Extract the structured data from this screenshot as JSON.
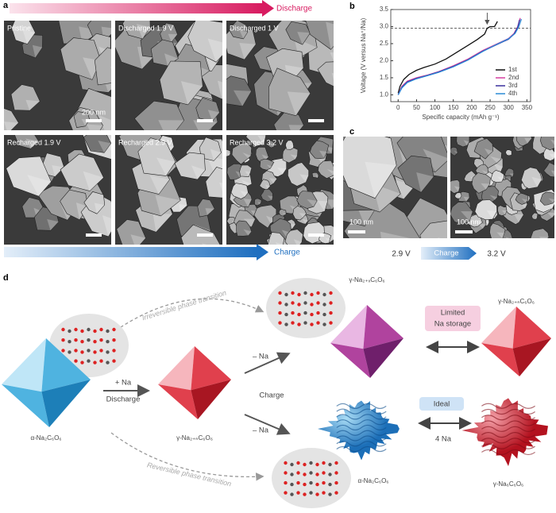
{
  "panel_a": {
    "label": "a",
    "top_arrow": "Discharge",
    "bottom_arrow": "Charge",
    "images": [
      {
        "caption": "Pristine",
        "scale_bar": "200 nm"
      },
      {
        "caption": "Discharged 1.9 V"
      },
      {
        "caption": "Discharged 1 V"
      },
      {
        "caption": "Recharged 1.9 V"
      },
      {
        "caption": "Recharged 2.9 V"
      },
      {
        "caption": "Recharged 3.2 V"
      }
    ]
  },
  "chart_data": {
    "type": "line",
    "panel_label": "b",
    "xlabel": "Specific capacity (mAh g⁻¹)",
    "ylabel": "Voltage (V versus Na⁺/Na)",
    "xlim": [
      -20,
      360
    ],
    "ylim": [
      0.8,
      3.5
    ],
    "xticks": [
      0,
      50,
      100,
      150,
      200,
      250,
      300,
      350
    ],
    "yticks": [
      {
        "value": 1,
        "label": "1.0"
      },
      1.5,
      {
        "value": 2,
        "label": "2.0"
      },
      2.5,
      {
        "value": 3,
        "label": "3.0"
      },
      3.5
    ],
    "reference_line": 2.95,
    "legend": "lower right",
    "series": [
      {
        "name": "1st",
        "color": "#111111",
        "x": [
          0,
          5,
          15,
          30,
          50,
          70,
          100,
          130,
          160,
          190,
          215,
          235,
          242,
          250,
          262,
          270
        ],
        "values": [
          1.05,
          1.25,
          1.45,
          1.6,
          1.72,
          1.8,
          1.9,
          2.05,
          2.25,
          2.45,
          2.62,
          2.78,
          2.95,
          3.0,
          3.0,
          3.15
        ]
      },
      {
        "name": "2nd",
        "color": "#d63fa0",
        "x": [
          0,
          10,
          25,
          50,
          80,
          110,
          150,
          190,
          230,
          270,
          300,
          315,
          325,
          332
        ],
        "values": [
          1.0,
          1.25,
          1.4,
          1.5,
          1.58,
          1.68,
          1.85,
          2.05,
          2.3,
          2.5,
          2.65,
          2.8,
          3.0,
          3.25
        ]
      },
      {
        "name": "3rd",
        "color": "#3b2f9e",
        "x": [
          0,
          10,
          25,
          50,
          80,
          110,
          150,
          190,
          230,
          270,
          300,
          315,
          325,
          330
        ],
        "values": [
          1.0,
          1.22,
          1.38,
          1.48,
          1.57,
          1.67,
          1.83,
          2.03,
          2.28,
          2.48,
          2.63,
          2.78,
          2.98,
          3.2
        ]
      },
      {
        "name": "4th",
        "color": "#2b8ad6",
        "x": [
          0,
          10,
          25,
          50,
          80,
          110,
          150,
          190,
          230,
          270,
          300,
          318,
          328,
          335
        ],
        "values": [
          1.0,
          1.2,
          1.36,
          1.47,
          1.56,
          1.66,
          1.82,
          2.02,
          2.27,
          2.49,
          2.64,
          2.8,
          3.0,
          3.22
        ]
      }
    ]
  },
  "panel_c": {
    "label": "c",
    "scale_bars": [
      "100 nm",
      "100 nm"
    ],
    "start": "2.9 V",
    "arrow": "Charge",
    "end": "3.2 V"
  },
  "panel_d": {
    "label": "d",
    "irreversible": "Irreversible phase transition",
    "reversible": "Reversible phase transition",
    "discharge_arrow": {
      "top": "+ Na",
      "bottom": "Discharge"
    },
    "charge_arrows": {
      "upper": "– Na",
      "middle": "Charge",
      "lower": "– Na"
    },
    "limited": [
      "Limited",
      "Na storage"
    ],
    "ideal": "Ideal",
    "four_na": "4 Na",
    "species": {
      "pristine": "α-Na₂C₆O₆",
      "discharged": "γ-Na₂₊ₙC₆O₆",
      "upper_charged": "γ-Na₂₊ₓC₆O₆",
      "upper_final": "γ-Na₂₊ₙC₆O₆",
      "lower_charged": "α-Na₂C₆O₆",
      "lower_final": "γ-Na₆C₆O₆"
    }
  }
}
